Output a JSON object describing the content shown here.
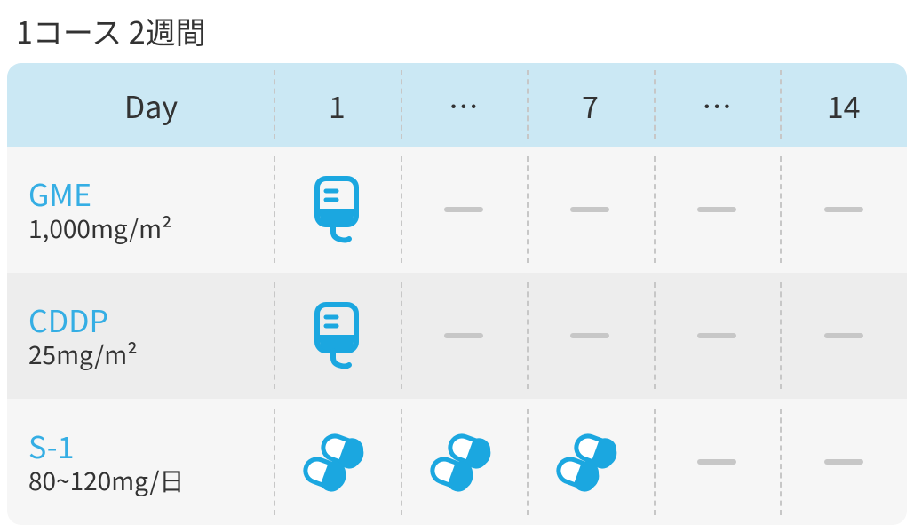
{
  "title": "1コース 2週間",
  "header": {
    "label": "Day",
    "days": [
      "1",
      "…",
      "7",
      "…",
      "14"
    ]
  },
  "rows": [
    {
      "name": "GME",
      "dose": "1,000mg/m²",
      "cells": [
        "iv",
        "dash",
        "dash",
        "dash",
        "dash"
      ]
    },
    {
      "name": "CDDP",
      "dose": "25mg/m²",
      "cells": [
        "iv",
        "dash",
        "dash",
        "dash",
        "dash"
      ]
    },
    {
      "name": "S-1",
      "dose": "80~120mg/日",
      "cells": [
        "pill",
        "pill",
        "pill",
        "dash",
        "dash"
      ]
    }
  ],
  "colors": {
    "header_bg": "#cbe8f4",
    "row_even_bg": "#f6f6f6",
    "row_odd_bg": "#ededed",
    "accent": "#1ba7e0",
    "dash": "#c7c7c7",
    "text": "#333333",
    "divider": "#c7c7c7"
  },
  "icons": {
    "iv": "iv-bag-icon",
    "pill": "pills-icon"
  }
}
